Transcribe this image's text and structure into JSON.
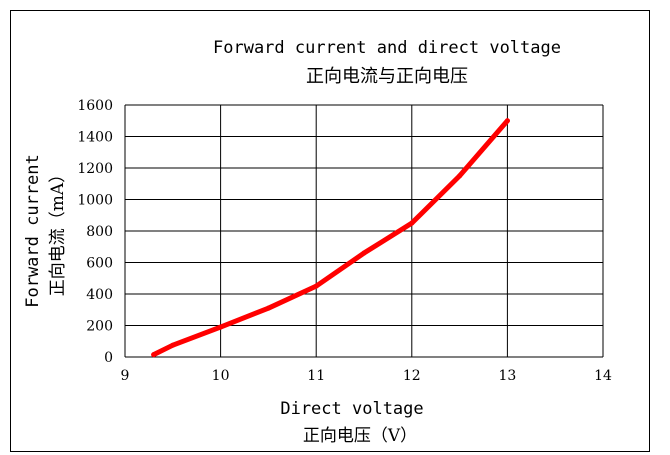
{
  "chart_data": {
    "type": "line",
    "title": "Forward current and direct voltage",
    "subtitle": "正向电流与正向电压",
    "xlabel": "Direct voltage",
    "xlabel_sub": "正向电压（V）",
    "ylabel": "Forward current",
    "ylabel_sub": "正向电流（mA）",
    "xlim": [
      9,
      14
    ],
    "ylim": [
      0,
      1600
    ],
    "xticks": [
      9,
      10,
      11,
      12,
      13,
      14
    ],
    "yticks": [
      0,
      200,
      400,
      600,
      800,
      1000,
      1200,
      1400,
      1600
    ],
    "grid": true,
    "line_color": "#ff0000",
    "series": [
      {
        "x": [
          9.3,
          9.5,
          10.0,
          10.5,
          11.0,
          11.5,
          12.0,
          12.5,
          13.0
        ],
        "y": [
          15,
          75,
          190,
          310,
          450,
          660,
          850,
          1150,
          1500
        ]
      }
    ]
  }
}
